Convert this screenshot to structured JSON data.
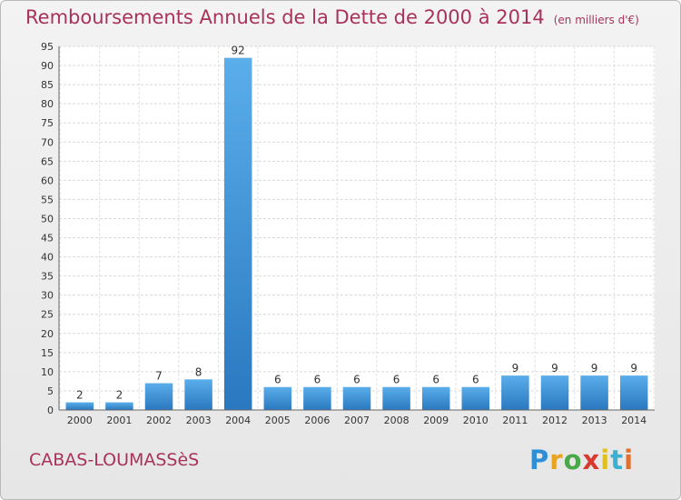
{
  "title": "Remboursements Annuels de la Dette de 2000 à 2014",
  "unit_label": "(en milliers d'€)",
  "commune": "CABAS-LOUMASSèS",
  "logo": {
    "letters": [
      "P",
      "r",
      "o",
      "x",
      "i",
      "t",
      "i"
    ],
    "colors": [
      "#2f8fd6",
      "#e8a320",
      "#4aa84a",
      "#d83a2f",
      "#e0c020",
      "#3cb0d0",
      "#e07030"
    ]
  },
  "chart_data": {
    "type": "bar",
    "categories": [
      "2000",
      "2001",
      "2002",
      "2003",
      "2004",
      "2005",
      "2006",
      "2007",
      "2008",
      "2009",
      "2010",
      "2011",
      "2012",
      "2013",
      "2014"
    ],
    "values": [
      2,
      2,
      7,
      8,
      92,
      6,
      6,
      6,
      6,
      6,
      6,
      9,
      9,
      9,
      9
    ],
    "data_labels": [
      "2",
      "2",
      "7",
      "8",
      "92",
      "6",
      "6",
      "6",
      "6",
      "6",
      "6",
      "9",
      "9",
      "9",
      "9"
    ],
    "ylim": [
      0,
      95
    ],
    "yticks": [
      0,
      5,
      10,
      15,
      20,
      25,
      30,
      35,
      40,
      45,
      50,
      55,
      60,
      65,
      70,
      75,
      80,
      85,
      90,
      95
    ],
    "ytick_labels": [
      "0",
      "5",
      "10",
      "15",
      "20",
      "25",
      "30",
      "35",
      "40",
      "45",
      "50",
      "55",
      "60",
      "65",
      "70",
      "75",
      "80",
      "85",
      "90",
      "95"
    ],
    "grid": true,
    "bar_color": "#3f9ae0",
    "xlabel": "",
    "ylabel": ""
  }
}
